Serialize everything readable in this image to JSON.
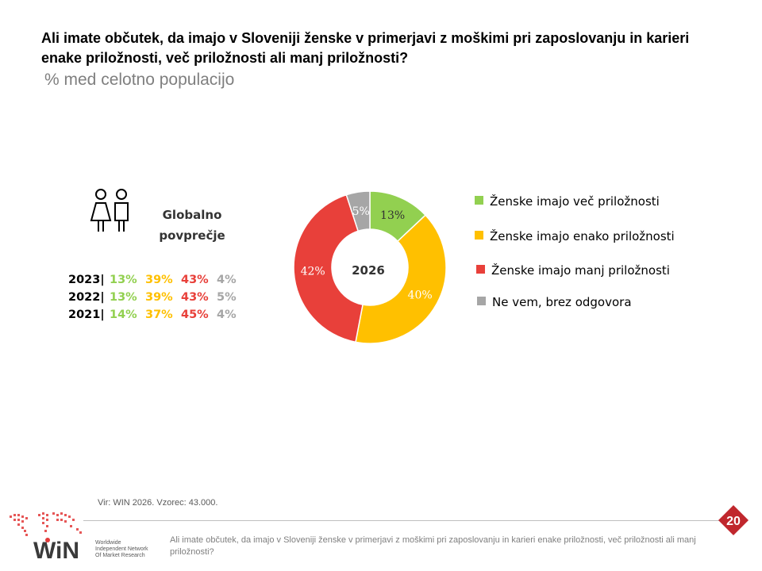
{
  "header": {
    "title": "Ali imate občutek, da imajo v Sloveniji ženske v primerjavi z moškimi pri zaposlovanju in karieri enake priložnosti, več priložnosti ali manj priložnosti?",
    "subtitle": "% med celotno populacijo"
  },
  "global_avg": {
    "line1": "Globalno",
    "line2": "povprečje",
    "rows": [
      {
        "year": "2023|",
        "v1": "13%",
        "v2": "39%",
        "v3": "43%",
        "v4": "4%"
      },
      {
        "year": "2022|",
        "v1": "13%",
        "v2": "39%",
        "v3": "43%",
        "v4": "5%"
      },
      {
        "year": "2021|",
        "v1": "14%",
        "v2": "37%",
        "v3": "45%",
        "v4": "4%"
      }
    ]
  },
  "chart_data": {
    "type": "pie",
    "variant": "donut",
    "center_label": "2026",
    "categories": [
      "Ženske imajo več priložnosti",
      "Ženske imajo enako priložnosti",
      "Ženske imajo manj priložnosti",
      "Ne vem, brez odgovora"
    ],
    "values": [
      13,
      40,
      42,
      5
    ],
    "labels": [
      "13%",
      "40%",
      "42%",
      "5%"
    ],
    "colors": [
      "#92d050",
      "#ffc000",
      "#e8403a",
      "#a6a6a6"
    ],
    "legend_position": "right"
  },
  "footer": {
    "source": "Vir: WIN 2026.  Vzorec: 43.000.",
    "question": "Ali imate občutek, da imajo v Sloveniji ženske v primerjavi z moškimi pri zaposlovanju in karieri enake priložnosti, več priložnosti ali manj priložnosti?",
    "page_number": "20",
    "logo_text": "WiN",
    "logo_sub": [
      "Worldwide",
      "Independent Network",
      "Of Market Research"
    ]
  }
}
